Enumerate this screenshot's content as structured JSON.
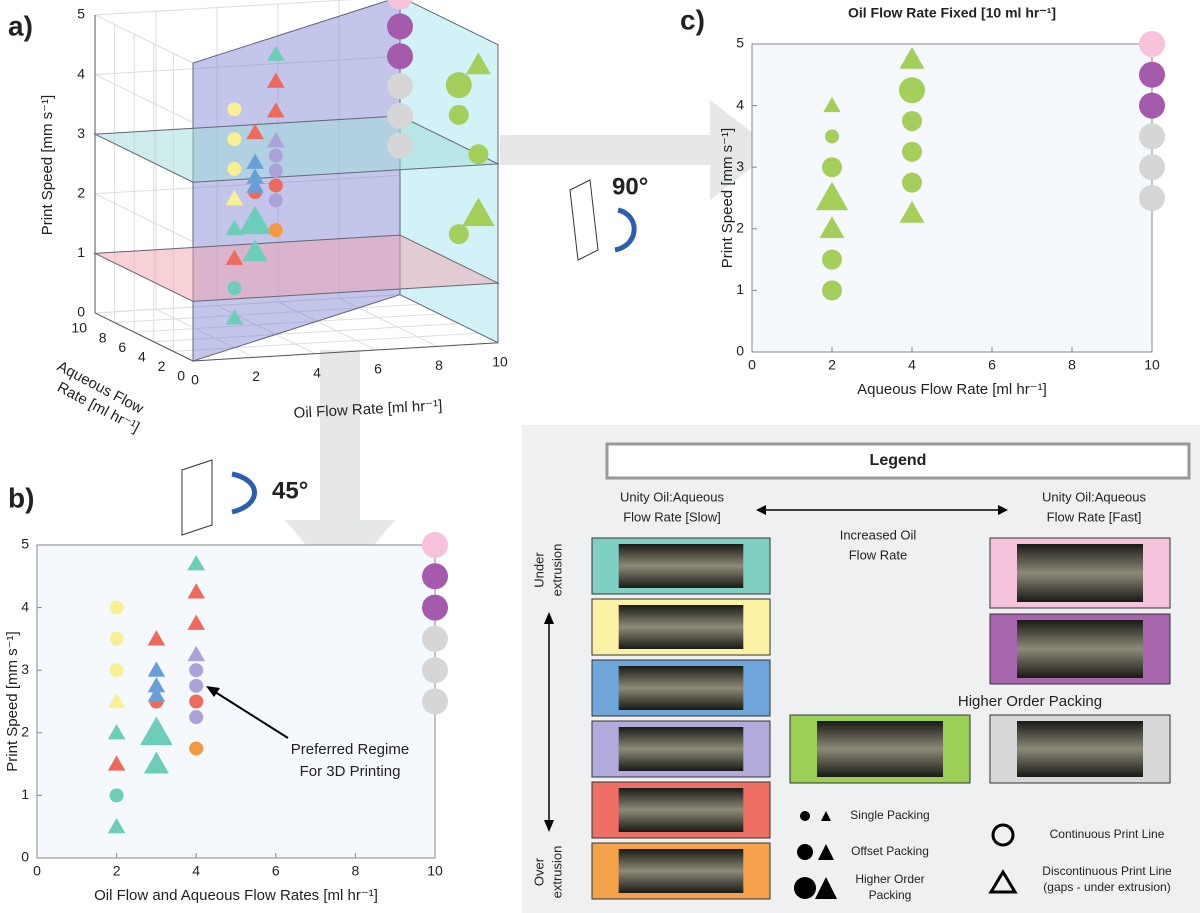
{
  "panel_labels": [
    "a)",
    "b)",
    "c)"
  ],
  "chart_data": [
    {
      "type": "scatter3d",
      "xlabel": "Oil Flow Rate [ml hr⁻¹]",
      "ylabel": "Print Speed [mm s⁻¹]",
      "zlabel": [
        "Aqueous Flow",
        "Rate [ml hr⁻¹]"
      ],
      "xlim": [
        0,
        10
      ],
      "xticks": [
        0,
        2,
        4,
        6,
        8,
        10
      ],
      "zlim": [
        0,
        10
      ],
      "zticks": [
        0,
        2,
        4,
        6,
        8,
        10
      ],
      "ylim": [
        0,
        5
      ],
      "yticks": [
        0,
        1,
        2,
        3,
        4,
        5
      ],
      "planes": [
        {
          "y": 1,
          "color": "#f2a3b0"
        },
        {
          "y": 3,
          "color": "#9fdcd8"
        }
      ],
      "series": [
        {
          "color": "#f9ef95",
          "x": [
            2,
            2,
            2,
            2
          ],
          "z": [
            2,
            2,
            2,
            2
          ],
          "values": [
            4,
            3.5,
            3,
            2.5
          ],
          "markers": [
            "circle",
            "circle",
            "circle",
            "triangle"
          ],
          "sizes": [
            "small",
            "small",
            "small",
            "small"
          ]
        },
        {
          "color": "#6ccdb8",
          "x": [
            2,
            2,
            2,
            3,
            3,
            4
          ],
          "z": [
            2,
            2,
            2,
            3,
            3,
            4
          ],
          "values": [
            2,
            1,
            0.5,
            2,
            1.5,
            4.7
          ],
          "markers": [
            "triangle",
            "circle",
            "triangle",
            "triangle",
            "triangle",
            "triangle"
          ],
          "sizes": [
            "small",
            "small",
            "small",
            "large",
            "medium",
            "small"
          ]
        },
        {
          "color": "#ee6a5c",
          "x": [
            2,
            3,
            3,
            4,
            4,
            4
          ],
          "z": [
            2,
            3,
            3,
            4,
            4,
            4
          ],
          "values": [
            1.5,
            3.5,
            2.5,
            4.25,
            3.75,
            2.5
          ],
          "markers": [
            "triangle",
            "triangle",
            "circle",
            "triangle",
            "triangle",
            "circle"
          ],
          "sizes": [
            "small",
            "small",
            "small",
            "small",
            "small",
            "small"
          ]
        },
        {
          "color": "#6a9fd6",
          "x": [
            3,
            3,
            3
          ],
          "z": [
            3,
            3,
            3
          ],
          "values": [
            3,
            2.75,
            2.6
          ],
          "markers": [
            "triangle",
            "triangle",
            "triangle"
          ],
          "sizes": [
            "small",
            "small",
            "small"
          ]
        },
        {
          "color": "#aca2da",
          "x": [
            4,
            4,
            4,
            4
          ],
          "z": [
            4,
            4,
            4,
            4
          ],
          "values": [
            3.25,
            3,
            2.75,
            2.25
          ],
          "markers": [
            "triangle",
            "circle",
            "circle",
            "circle"
          ],
          "sizes": [
            "small",
            "small",
            "small",
            "small"
          ]
        },
        {
          "color": "#f39a40",
          "x": [
            4
          ],
          "z": [
            4
          ],
          "values": [
            1.75
          ],
          "markers": [
            "circle"
          ],
          "sizes": [
            "small"
          ]
        },
        {
          "color": "#a3cf5a",
          "x": [
            10,
            10,
            10,
            10,
            10,
            10
          ],
          "z": [
            2,
            2,
            2,
            4,
            4,
            4
          ],
          "values": [
            4.5,
            3,
            2,
            4,
            3.5,
            1.5
          ],
          "markers": [
            "triangle",
            "circle",
            "triangle",
            "circle",
            "circle",
            "circle"
          ],
          "sizes": [
            "medium",
            "medium",
            "large",
            "large",
            "medium",
            "medium"
          ]
        },
        {
          "color": "#f7c2dc",
          "x": [
            10
          ],
          "z": [
            10
          ],
          "values": [
            5
          ],
          "markers": [
            "circle"
          ],
          "sizes": [
            "large"
          ]
        },
        {
          "color": "#a65aac",
          "x": [
            10,
            10
          ],
          "z": [
            10,
            10
          ],
          "values": [
            4.5,
            4
          ],
          "markers": [
            "circle",
            "circle"
          ],
          "sizes": [
            "large",
            "large"
          ]
        },
        {
          "color": "#d6d6d6",
          "x": [
            10,
            10,
            10
          ],
          "z": [
            10,
            10,
            10
          ],
          "values": [
            3.5,
            3,
            2.5
          ],
          "markers": [
            "circle",
            "circle",
            "circle"
          ],
          "sizes": [
            "large",
            "large",
            "large"
          ]
        }
      ]
    },
    {
      "type": "scatter",
      "xlabel": "Oil Flow and Aqueous Flow Rates [ml hr⁻¹]",
      "ylabel": "Print Speed [mm s⁻¹]",
      "xlim": [
        0,
        10
      ],
      "xticks": [
        0,
        2,
        4,
        6,
        8,
        10
      ],
      "ylim": [
        0,
        5
      ],
      "yticks": [
        0,
        1,
        2,
        3,
        4,
        5
      ],
      "series": [
        {
          "color": "#f9ef95",
          "x": [
            2,
            2,
            2,
            2
          ],
          "values": [
            4,
            3.5,
            3,
            2.5
          ],
          "markers": [
            "circle",
            "circle",
            "circle",
            "triangle"
          ],
          "sizes": [
            "small",
            "small",
            "small",
            "small"
          ]
        },
        {
          "color": "#6ccdb8",
          "x": [
            2,
            2,
            2,
            3,
            3,
            4
          ],
          "values": [
            2,
            1,
            0.5,
            2,
            1.5,
            4.7
          ],
          "markers": [
            "triangle",
            "circle",
            "triangle",
            "triangle",
            "triangle",
            "triangle"
          ],
          "sizes": [
            "small",
            "small",
            "small",
            "large",
            "medium",
            "small"
          ]
        },
        {
          "color": "#ee6a5c",
          "x": [
            2,
            3,
            3,
            4,
            4,
            4
          ],
          "values": [
            1.5,
            3.5,
            2.5,
            4.25,
            3.75,
            2.5
          ],
          "markers": [
            "triangle",
            "triangle",
            "circle",
            "triangle",
            "triangle",
            "circle"
          ],
          "sizes": [
            "small",
            "small",
            "small",
            "small",
            "small",
            "small"
          ]
        },
        {
          "color": "#6a9fd6",
          "x": [
            3,
            3,
            3
          ],
          "values": [
            3,
            2.75,
            2.6
          ],
          "markers": [
            "triangle",
            "triangle",
            "triangle"
          ],
          "sizes": [
            "small",
            "small",
            "small"
          ]
        },
        {
          "color": "#aca2da",
          "x": [
            4,
            4,
            4,
            4
          ],
          "values": [
            3.25,
            3,
            2.75,
            2.25
          ],
          "markers": [
            "triangle",
            "circle",
            "circle",
            "circle"
          ],
          "sizes": [
            "small",
            "small",
            "small",
            "small"
          ]
        },
        {
          "color": "#f39a40",
          "x": [
            4
          ],
          "values": [
            1.75
          ],
          "markers": [
            "circle"
          ],
          "sizes": [
            "small"
          ]
        },
        {
          "color": "#f7c2dc",
          "x": [
            10
          ],
          "values": [
            5
          ],
          "markers": [
            "circle"
          ],
          "sizes": [
            "large"
          ]
        },
        {
          "color": "#a65aac",
          "x": [
            10,
            10
          ],
          "values": [
            4.5,
            4
          ],
          "markers": [
            "circle",
            "circle"
          ],
          "sizes": [
            "large",
            "large"
          ]
        },
        {
          "color": "#d6d6d6",
          "x": [
            10,
            10,
            10
          ],
          "values": [
            3.5,
            3,
            2.5
          ],
          "markers": [
            "circle",
            "circle",
            "circle"
          ],
          "sizes": [
            "large",
            "large",
            "large"
          ]
        }
      ]
    },
    {
      "type": "scatter",
      "title": "Oil Flow Rate Fixed [10 ml hr⁻¹]",
      "xlabel": "Aqueous Flow Rate [ml hr⁻¹]",
      "ylabel": "Print Speed [mm s⁻¹]",
      "xlim": [
        0,
        10
      ],
      "xticks": [
        0,
        2,
        4,
        6,
        8,
        10
      ],
      "ylim": [
        0,
        5
      ],
      "yticks": [
        0,
        1,
        2,
        3,
        4,
        5
      ],
      "series": [
        {
          "color": "#a3cf5a",
          "x": [
            2,
            2,
            2,
            2,
            2,
            2,
            2,
            4,
            4,
            4,
            4,
            4,
            4
          ],
          "values": [
            4,
            3.5,
            3,
            2.5,
            2,
            1.5,
            1,
            4.75,
            4.25,
            3.75,
            3.25,
            2.75,
            2.25
          ],
          "markers": [
            "triangle",
            "circle",
            "circle",
            "triangle",
            "triangle",
            "circle",
            "circle",
            "triangle",
            "circle",
            "circle",
            "circle",
            "circle",
            "triangle"
          ],
          "sizes": [
            "small",
            "small",
            "medium",
            "large",
            "medium",
            "medium",
            "medium",
            "medium",
            "large",
            "medium",
            "medium",
            "medium",
            "medium"
          ]
        },
        {
          "color": "#f7c2dc",
          "x": [
            10
          ],
          "values": [
            5
          ],
          "markers": [
            "circle"
          ],
          "sizes": [
            "large"
          ]
        },
        {
          "color": "#a65aac",
          "x": [
            10,
            10
          ],
          "values": [
            4.5,
            4
          ],
          "markers": [
            "circle",
            "circle"
          ],
          "sizes": [
            "large",
            "large"
          ]
        },
        {
          "color": "#d6d6d6",
          "x": [
            10,
            10,
            10
          ],
          "values": [
            3.5,
            3,
            2.5
          ],
          "markers": [
            "circle",
            "circle",
            "circle"
          ],
          "sizes": [
            "large",
            "large",
            "large"
          ]
        }
      ]
    }
  ],
  "annotations": {
    "rotation_c": "90°",
    "rotation_b": "45°",
    "preferred": [
      "Preferred Regime",
      "For 3D Printing"
    ]
  },
  "legend": {
    "title": "Legend",
    "slow": [
      "Unity Oil:Aqueous",
      "Flow Rate [Slow]"
    ],
    "fast": [
      "Unity Oil:Aqueous",
      "Flow Rate [Fast]"
    ],
    "increase": [
      "Increased Oil",
      "Flow Rate"
    ],
    "under": [
      "Under",
      "extrusion"
    ],
    "over": [
      "Over",
      "extrusion"
    ],
    "higher_order": "Higher Order Packing",
    "packing": [
      [
        "Single Packing"
      ],
      [
        "Offset Packing"
      ],
      [
        "Higher Order",
        "Packing"
      ]
    ],
    "lines": [
      [
        "Continuous Print Line"
      ],
      [
        "Discontinuous Print Line",
        "(gaps - under extrusion)"
      ]
    ],
    "slow_colors": [
      "#7fd0c3",
      "#fbf2a4",
      "#6fa6da",
      "#b3aadc",
      "#ee6f63",
      "#f5a04a"
    ],
    "fast_colors": [
      "#f5c3dc",
      "#a866ae"
    ],
    "higher_colors": [
      "#9ccf55",
      "#d8d8d8"
    ]
  }
}
